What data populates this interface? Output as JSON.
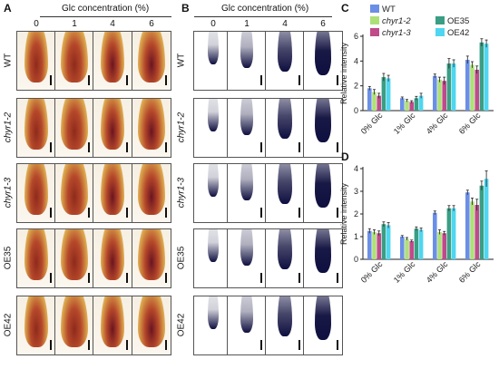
{
  "panels": {
    "A": {
      "label": "A",
      "title": "Glc concentration (%)"
    },
    "B": {
      "label": "B",
      "title": "Glc concentration (%)"
    },
    "C": {
      "label": "C"
    },
    "D": {
      "label": "D"
    }
  },
  "concentrations": [
    "0",
    "1",
    "4",
    "6"
  ],
  "rows": [
    {
      "label": "WT",
      "italic": false
    },
    {
      "label": "chyr1-2",
      "italic": true
    },
    {
      "label": "chyr1-3",
      "italic": true
    },
    {
      "label": "OE35",
      "italic": false
    },
    {
      "label": "OE42",
      "italic": false
    }
  ],
  "legend": [
    {
      "name": "WT",
      "color": "#6b8fe6",
      "italic": false
    },
    {
      "name": "chyr1-2",
      "color": "#aee07a",
      "italic": true
    },
    {
      "name": "chyr1-3",
      "color": "#c04a8a",
      "italic": true
    },
    {
      "name": "OE35",
      "color": "#3a9e84",
      "italic": false
    },
    {
      "name": "OE42",
      "color": "#4fd6f0",
      "italic": false
    }
  ],
  "chart_data": [
    {
      "panel": "C",
      "type": "bar",
      "ylabel": "Relative intensity",
      "ylim": [
        0,
        6
      ],
      "yticks": [
        "0",
        "2",
        "4",
        "6"
      ],
      "categories": [
        "0% Glc",
        "1% Glc",
        "4% Glc",
        "6% Glc"
      ],
      "series": [
        {
          "name": "WT",
          "values": [
            1.8,
            1.0,
            2.8,
            4.1
          ]
        },
        {
          "name": "chyr1-2",
          "values": [
            1.5,
            0.8,
            2.5,
            3.7
          ]
        },
        {
          "name": "chyr1-3",
          "values": [
            1.2,
            0.7,
            2.4,
            3.3
          ]
        },
        {
          "name": "OE35",
          "values": [
            2.7,
            1.0,
            3.8,
            5.5
          ]
        },
        {
          "name": "OE42",
          "values": [
            2.6,
            1.2,
            3.8,
            5.4
          ]
        }
      ],
      "errors": [
        [
          0.15,
          0.1,
          0.15,
          0.3
        ],
        [
          0.2,
          0.1,
          0.2,
          0.25
        ],
        [
          0.2,
          0.1,
          0.3,
          0.3
        ],
        [
          0.3,
          0.15,
          0.4,
          0.3
        ],
        [
          0.25,
          0.2,
          0.3,
          0.3
        ]
      ]
    },
    {
      "panel": "D",
      "type": "bar",
      "ylabel": "Relative intensity",
      "ylim": [
        0,
        4
      ],
      "yticks": [
        "0",
        "1",
        "2",
        "3",
        "4"
      ],
      "categories": [
        "0% Glc",
        "1% Glc",
        "4% Glc",
        "6% Glc"
      ],
      "series": [
        {
          "name": "WT",
          "values": [
            1.25,
            1.0,
            2.05,
            2.95
          ]
        },
        {
          "name": "chyr1-2",
          "values": [
            1.2,
            0.9,
            1.2,
            2.55
          ]
        },
        {
          "name": "chyr1-3",
          "values": [
            1.15,
            0.8,
            1.15,
            2.4
          ]
        },
        {
          "name": "OE35",
          "values": [
            1.55,
            1.35,
            2.25,
            3.25
          ]
        },
        {
          "name": "OE42",
          "values": [
            1.5,
            1.3,
            2.25,
            3.55
          ]
        }
      ],
      "errors": [
        [
          0.1,
          0.05,
          0.08,
          0.1
        ],
        [
          0.1,
          0.06,
          0.1,
          0.15
        ],
        [
          0.1,
          0.05,
          0.08,
          0.25
        ],
        [
          0.1,
          0.08,
          0.12,
          0.2
        ],
        [
          0.12,
          0.08,
          0.12,
          0.35
        ]
      ]
    }
  ]
}
